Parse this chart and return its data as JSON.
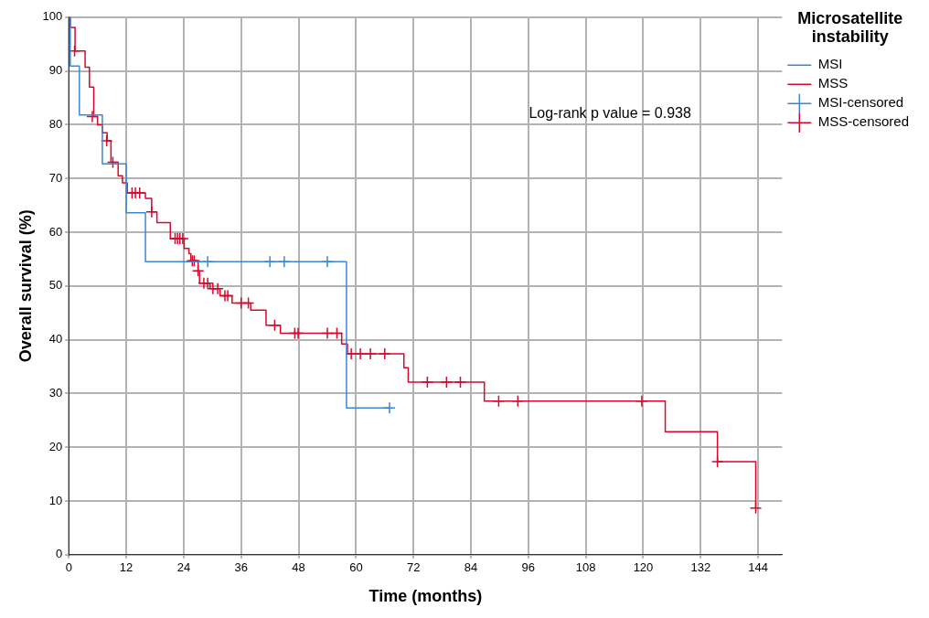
{
  "chart_data": {
    "type": "step",
    "xlabel": "Time (months)",
    "ylabel": "Overall survival (%)",
    "legend_title": "Microsatellite instability",
    "legend": "top right",
    "grid": true,
    "xlim": [
      0,
      149
    ],
    "xticks": [
      0,
      12,
      24,
      36,
      48,
      60,
      72,
      84,
      96,
      108,
      120,
      132,
      144
    ],
    "ylim": [
      0,
      100
    ],
    "yticks": [
      0,
      10,
      20,
      30,
      40,
      50,
      60,
      70,
      80,
      90,
      100
    ],
    "annotations": [
      "Log-rank p value = 0.938"
    ],
    "series": [
      {
        "name": "MSI",
        "color": "#3b86d8",
        "x": [
          0,
          0.3,
          2.2,
          7.0,
          12.0,
          16.0,
          58.0,
          67.0
        ],
        "values": [
          100,
          90.9,
          81.8,
          72.7,
          63.6,
          54.5,
          27.3,
          27.3
        ]
      },
      {
        "name": "MSS",
        "color": "#d6082e",
        "x": [
          0,
          0.3,
          1.3,
          3.4,
          4.3,
          5.2,
          6.0,
          7.0,
          8.0,
          8.8,
          10.3,
          11.2,
          12.2,
          16.0,
          17.3,
          18.4,
          21.2,
          24.1,
          25.1,
          25.5,
          27.0,
          27.3,
          29.5,
          31.6,
          34.1,
          38.0,
          41.2,
          44.2,
          57.0,
          58.2,
          70.0,
          70.9,
          86.8,
          124.6,
          135.5,
          143.5
        ],
        "values": [
          100,
          98.1,
          93.7,
          90.7,
          87.0,
          81.5,
          80.0,
          78.5,
          77.0,
          73.0,
          70.5,
          69.2,
          67.3,
          66.3,
          63.8,
          61.8,
          58.8,
          57.0,
          56.0,
          54.7,
          52.8,
          50.5,
          49.5,
          48.2,
          46.8,
          45.5,
          42.7,
          41.2,
          39.2,
          37.4,
          34.8,
          32.1,
          28.6,
          22.9,
          17.3,
          8.7
        ]
      },
      {
        "name": "MSI-censored",
        "type": "scatter",
        "color": "#3b86d8",
        "marker": "cross",
        "x": [
          29,
          42,
          45,
          54,
          67
        ],
        "values": [
          54.5,
          54.5,
          54.5,
          54.5,
          27.3
        ]
      },
      {
        "name": "MSS-censored",
        "type": "scatter",
        "color": "#d6082e",
        "marker": "cross",
        "x": [
          1.2,
          4.9,
          7.9,
          9.2,
          13.2,
          13.9,
          14.8,
          17.3,
          22.2,
          22.7,
          23.2,
          23.8,
          25.8,
          26.2,
          27.0,
          28.2,
          29.0,
          30.1,
          31.1,
          32.6,
          33.2,
          36.0,
          37.5,
          43.0,
          47.2,
          47.9,
          54.0,
          56.0,
          59.0,
          60.9,
          63.0,
          66.0,
          74.9,
          78.9,
          81.8,
          89.8,
          93.8,
          119.7,
          135.5,
          143.5
        ],
        "values": [
          93.7,
          81.5,
          77.0,
          73.0,
          67.3,
          67.3,
          67.3,
          63.8,
          58.8,
          58.8,
          58.8,
          58.8,
          54.7,
          54.7,
          52.8,
          50.5,
          50.5,
          49.5,
          49.5,
          48.2,
          48.2,
          46.8,
          46.8,
          42.7,
          41.2,
          41.2,
          41.2,
          41.2,
          37.4,
          37.4,
          37.4,
          37.4,
          32.1,
          32.1,
          32.1,
          28.6,
          28.6,
          28.6,
          17.3,
          8.7
        ]
      }
    ]
  }
}
